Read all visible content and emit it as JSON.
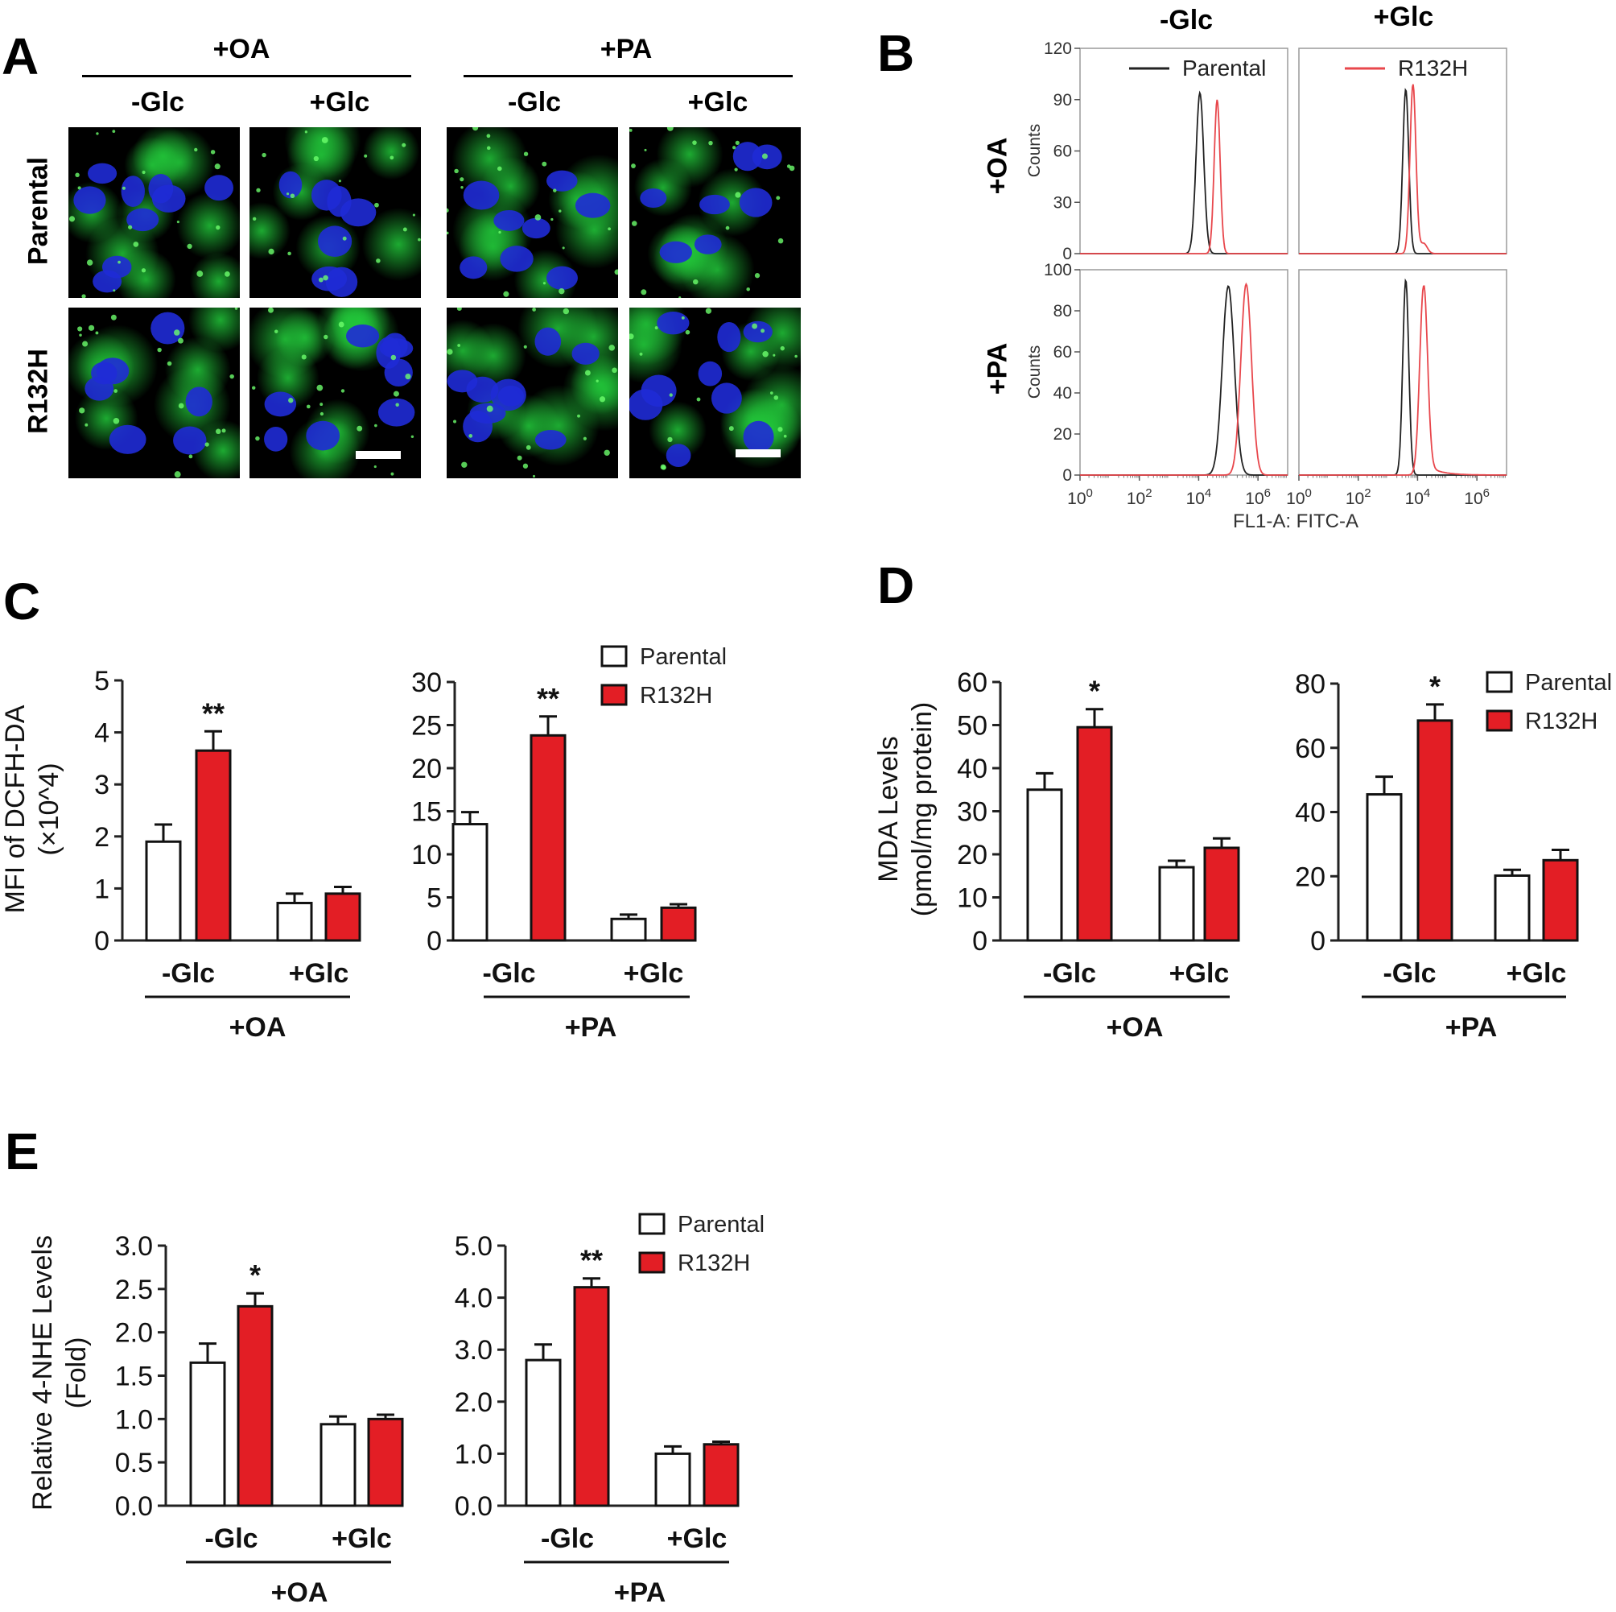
{
  "panelA": {
    "letter": "A",
    "groups": [
      {
        "label": "+OA",
        "cols": [
          "-Glc",
          "+Glc"
        ]
      },
      {
        "label": "+PA",
        "cols": [
          "-Glc",
          "+Glc"
        ]
      }
    ],
    "rows": [
      "Parental",
      "R132H"
    ],
    "colors": {
      "nucleus": "#1f2bd6",
      "stain": "#22c83a",
      "background": "#000000"
    }
  },
  "panelB": {
    "letter": "B",
    "col_labels": [
      "-Glc",
      "+Glc"
    ],
    "row_labels": [
      "+OA",
      "+PA"
    ],
    "ylabel": "Counts",
    "xlabel": "FL1-A: FITC-A",
    "legend": [
      {
        "name": "Parental",
        "color": "#222222"
      },
      {
        "name": "R132H",
        "color": "#e8474c"
      }
    ]
  },
  "panelC": {
    "letter": "C"
  },
  "panelD": {
    "letter": "D"
  },
  "panelE": {
    "letter": "E"
  },
  "legend_labels": [
    "Parental",
    "R132H"
  ],
  "chart_data": [
    {
      "type": "line",
      "panel": "B",
      "subplot": "OA -Glc",
      "x_scale": "log",
      "xlim": [
        1,
        10000000
      ],
      "ylim": [
        0,
        120
      ],
      "yticks": [
        0,
        30,
        60,
        90,
        120
      ],
      "xtick_labels": [
        {
          "base": "10",
          "exp": "0"
        },
        {
          "base": "10",
          "exp": "2"
        },
        {
          "base": "10",
          "exp": "4"
        },
        {
          "base": "10",
          "exp": "6"
        }
      ],
      "series": [
        {
          "name": "Parental",
          "peak_x": 11000,
          "peak_y": 94,
          "width": 0.13
        },
        {
          "name": "R132H",
          "peak_x": 42000,
          "peak_y": 90,
          "width": 0.1
        }
      ]
    },
    {
      "type": "line",
      "panel": "B",
      "subplot": "OA +Glc",
      "x_scale": "log",
      "xlim": [
        1,
        10000000
      ],
      "ylim": [
        0,
        120
      ],
      "yticks": [
        0,
        30,
        60,
        90,
        120
      ],
      "xtick_labels": [
        {
          "base": "10",
          "exp": "0"
        },
        {
          "base": "10",
          "exp": "2"
        },
        {
          "base": "10",
          "exp": "4"
        },
        {
          "base": "10",
          "exp": "6"
        }
      ],
      "series": [
        {
          "name": "Parental",
          "peak_x": 4000,
          "peak_y": 96,
          "width": 0.1
        },
        {
          "name": "R132H",
          "peak_x": 7000,
          "peak_y": 99,
          "width": 0.1,
          "shoulder_x": 16000,
          "shoulder_y": 6
        }
      ]
    },
    {
      "type": "line",
      "panel": "B",
      "subplot": "PA -Glc",
      "x_scale": "log",
      "xlim": [
        1,
        10000000
      ],
      "ylim": [
        0,
        100
      ],
      "yticks": [
        0,
        20,
        40,
        60,
        80,
        100
      ],
      "xtick_labels": [
        {
          "base": "10",
          "exp": "0"
        },
        {
          "base": "10",
          "exp": "2"
        },
        {
          "base": "10",
          "exp": "4"
        },
        {
          "base": "10",
          "exp": "6"
        }
      ],
      "series": [
        {
          "name": "Parental",
          "peak_x": 100000,
          "peak_y": 92,
          "width": 0.2
        },
        {
          "name": "R132H",
          "peak_x": 400000,
          "peak_y": 93,
          "width": 0.18
        }
      ]
    },
    {
      "type": "line",
      "panel": "B",
      "subplot": "PA +Glc",
      "x_scale": "log",
      "xlim": [
        1,
        10000000
      ],
      "ylim": [
        0,
        100
      ],
      "yticks": [
        0,
        20,
        40,
        60,
        80,
        100
      ],
      "xtick_labels": [
        {
          "base": "10",
          "exp": "0"
        },
        {
          "base": "10",
          "exp": "2"
        },
        {
          "base": "10",
          "exp": "4"
        },
        {
          "base": "10",
          "exp": "6"
        }
      ],
      "series": [
        {
          "name": "Parental",
          "peak_x": 4000,
          "peak_y": 95,
          "width": 0.1
        },
        {
          "name": "R132H",
          "peak_x": 16000,
          "peak_y": 92,
          "width": 0.13,
          "tail": true
        }
      ]
    },
    {
      "type": "bar",
      "panel": "C",
      "group_label": "+OA",
      "ylabel": [
        "MFI of DCFH-DA",
        "(×10^4)"
      ],
      "categories": [
        "-Glc",
        "+Glc"
      ],
      "ylim": [
        0,
        5
      ],
      "yticks": [
        "0",
        "1",
        "2",
        "3",
        "4",
        "5"
      ],
      "series": [
        {
          "name": "Parental",
          "values": [
            1.9,
            0.72
          ],
          "errors": [
            0.33,
            0.18
          ]
        },
        {
          "name": "R132H",
          "values": [
            3.65,
            0.9
          ],
          "errors": [
            0.37,
            0.13
          ]
        }
      ],
      "annotations": [
        "**",
        ""
      ]
    },
    {
      "type": "bar",
      "panel": "C",
      "group_label": "+PA",
      "legend": true,
      "categories": [
        "-Glc",
        "+Glc"
      ],
      "ylim": [
        0,
        30
      ],
      "yticks": [
        "0",
        "5",
        "10",
        "15",
        "20",
        "25",
        "30"
      ],
      "series": [
        {
          "name": "Parental",
          "values": [
            13.5,
            2.5
          ],
          "errors": [
            1.4,
            0.5
          ]
        },
        {
          "name": "R132H",
          "values": [
            23.8,
            3.8
          ],
          "errors": [
            2.2,
            0.4
          ]
        }
      ],
      "annotations": [
        "**",
        ""
      ]
    },
    {
      "type": "bar",
      "panel": "D",
      "group_label": "+OA",
      "ylabel": [
        "MDA Levels",
        "(pmol/mg protein)"
      ],
      "categories": [
        "-Glc",
        "+Glc"
      ],
      "ylim": [
        0,
        60
      ],
      "yticks": [
        "0",
        "10",
        "20",
        "30",
        "40",
        "50",
        "60"
      ],
      "series": [
        {
          "name": "Parental",
          "values": [
            35,
            17
          ],
          "errors": [
            3.8,
            1.5
          ]
        },
        {
          "name": "R132H",
          "values": [
            49.5,
            21.5
          ],
          "errors": [
            4.2,
            2.2
          ]
        }
      ],
      "annotations": [
        "*",
        ""
      ]
    },
    {
      "type": "bar",
      "panel": "D",
      "group_label": "+PA",
      "legend": true,
      "categories": [
        "-Glc",
        "+Glc"
      ],
      "ylim": [
        0,
        80
      ],
      "yticks": [
        "0",
        "20",
        "40",
        "60",
        "80"
      ],
      "series": [
        {
          "name": "Parental",
          "values": [
            45.5,
            20.2
          ],
          "errors": [
            5.5,
            1.8
          ]
        },
        {
          "name": "R132H",
          "values": [
            68.5,
            25
          ],
          "errors": [
            5,
            3.2
          ]
        }
      ],
      "annotations": [
        "*",
        ""
      ]
    },
    {
      "type": "bar",
      "panel": "E",
      "group_label": "+OA",
      "ylabel": [
        "Relative 4-NHE Levels",
        "(Fold)"
      ],
      "categories": [
        "-Glc",
        "+Glc"
      ],
      "ylim": [
        0,
        3
      ],
      "yticks": [
        "0.0",
        "0.5",
        "1.0",
        "1.5",
        "2.0",
        "2.5",
        "3.0"
      ],
      "series": [
        {
          "name": "Parental",
          "values": [
            1.65,
            0.94
          ],
          "errors": [
            0.22,
            0.09
          ]
        },
        {
          "name": "R132H",
          "values": [
            2.3,
            1.0
          ],
          "errors": [
            0.15,
            0.05
          ]
        }
      ],
      "annotations": [
        "*",
        ""
      ]
    },
    {
      "type": "bar",
      "panel": "E",
      "group_label": "+PA",
      "legend": true,
      "categories": [
        "-Glc",
        "+Glc"
      ],
      "ylim": [
        0,
        5
      ],
      "yticks": [
        "0.0",
        "1.0",
        "2.0",
        "3.0",
        "4.0",
        "5.0"
      ],
      "series": [
        {
          "name": "Parental",
          "values": [
            2.8,
            1.0
          ],
          "errors": [
            0.3,
            0.14
          ]
        },
        {
          "name": "R132H",
          "values": [
            4.2,
            1.18
          ],
          "errors": [
            0.17,
            0.05
          ]
        }
      ],
      "annotations": [
        "**",
        ""
      ]
    }
  ]
}
